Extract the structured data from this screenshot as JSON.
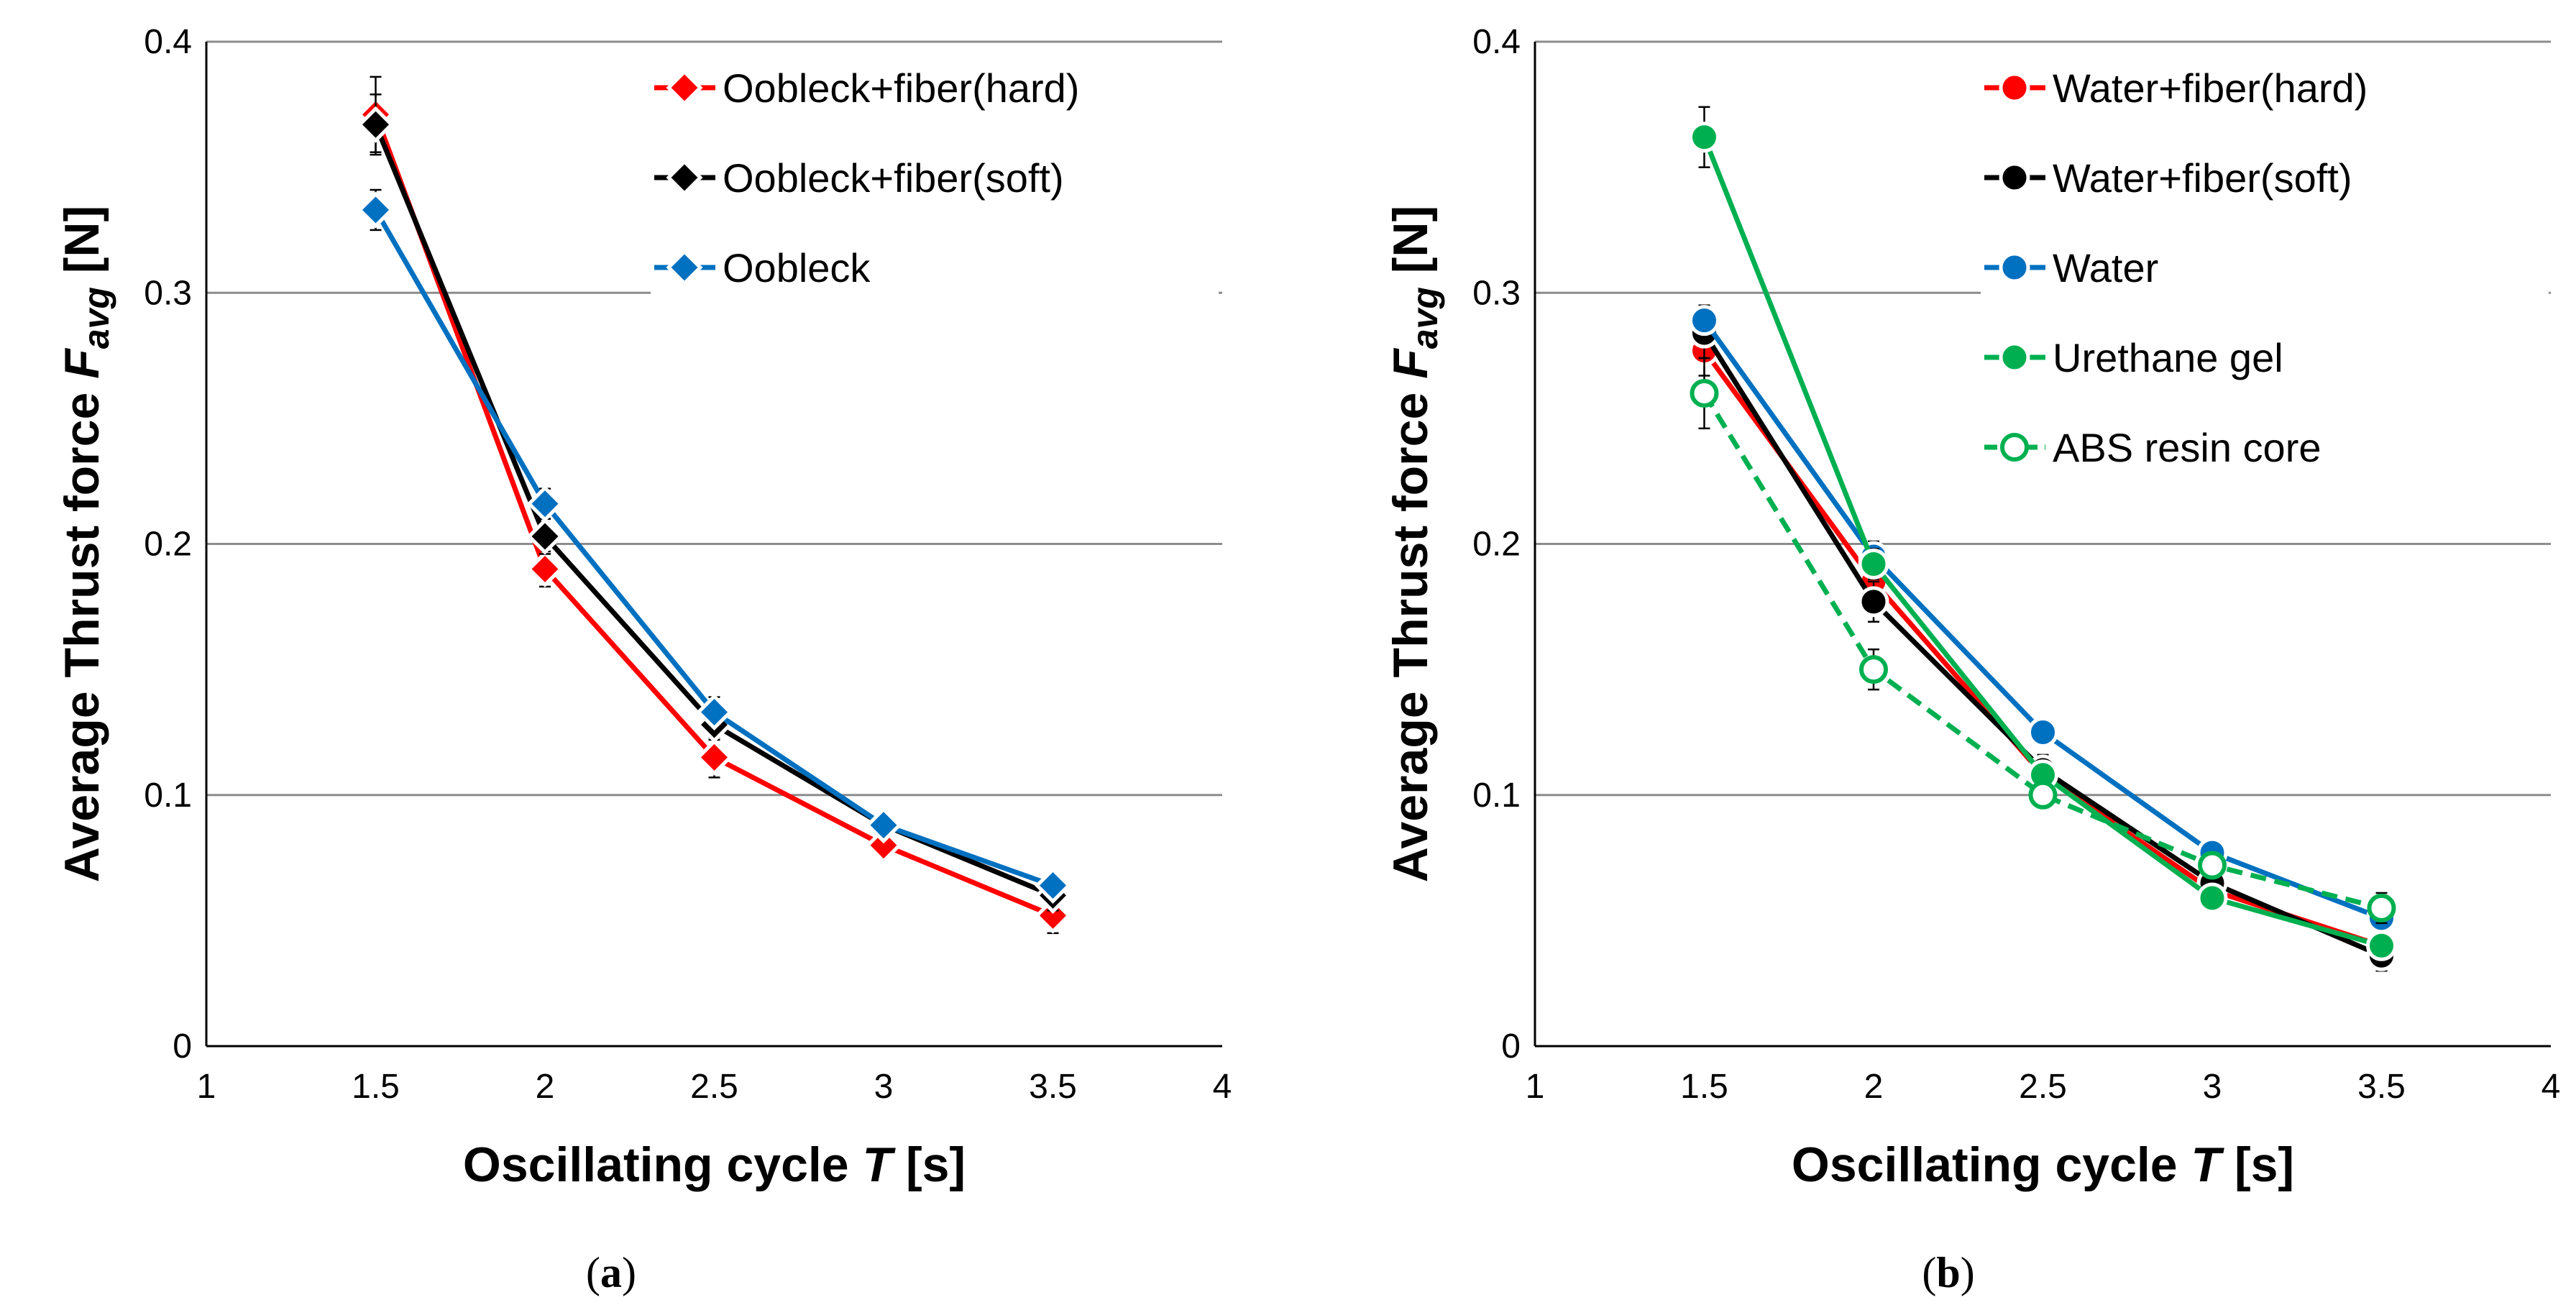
{
  "chart_data": [
    {
      "type": "line",
      "panel_label": "a",
      "xlabel": "Oscillating cycle",
      "xlabel_var": "T",
      "xlabel_unit": "[s]",
      "ylabel": "Average  Thrust force",
      "ylabel_var": "F",
      "ylabel_sub": "avg",
      "ylabel_unit": "[N]",
      "xlim": [
        1,
        4
      ],
      "ylim": [
        0,
        0.4
      ],
      "xticks": [
        "1",
        "1.5",
        "2",
        "2.5",
        "3",
        "3.5",
        "4"
      ],
      "yticks": [
        "0",
        "0.1",
        "0.2",
        "0.3",
        "0.4"
      ],
      "grid": "horizontal",
      "legend_position": "top-right",
      "series": [
        {
          "name": "Oobleck+fiber(hard)",
          "color": "#ff0000",
          "marker": "diamond",
          "dashed": false,
          "x": [
            1.5,
            2,
            2.5,
            3,
            3.5
          ],
          "y": [
            0.371,
            0.19,
            0.115,
            0.08,
            0.052
          ],
          "err": [
            0.015,
            0.007,
            0.008,
            0.004,
            0.007
          ]
        },
        {
          "name": "Oobleck+fiber(soft)",
          "color": "#000000",
          "marker": "diamond",
          "dashed": false,
          "x": [
            1.5,
            2,
            2.5,
            3,
            3.5
          ],
          "y": [
            0.367,
            0.203,
            0.128,
            0.088,
            0.06
          ],
          "err": [
            0.012,
            0.007,
            0.006,
            0.004,
            0.006
          ]
        },
        {
          "name": "Oobleck",
          "color": "#0070c0",
          "marker": "diamond",
          "dashed": false,
          "x": [
            1.5,
            2,
            2.5,
            3,
            3.5
          ],
          "y": [
            0.333,
            0.216,
            0.133,
            0.088,
            0.064
          ],
          "err": [
            0.008,
            0.006,
            0.006,
            0.004,
            0.004
          ]
        }
      ]
    },
    {
      "type": "line",
      "panel_label": "b",
      "xlabel": "Oscillating cycle",
      "xlabel_var": "T",
      "xlabel_unit": "[s]",
      "ylabel": "Average  Thrust force",
      "ylabel_var": "F",
      "ylabel_sub": "avg",
      "ylabel_unit": "[N]",
      "xlim": [
        1,
        4
      ],
      "ylim": [
        0,
        0.4
      ],
      "xticks": [
        "1",
        "1.5",
        "2",
        "2.5",
        "3",
        "3.5",
        "4"
      ],
      "yticks": [
        "0",
        "0.1",
        "0.2",
        "0.3",
        "0.4"
      ],
      "grid": "horizontal",
      "legend_position": "top-right",
      "series": [
        {
          "name": "Water+fiber(hard)",
          "color": "#ff0000",
          "marker": "circle",
          "dashed": false,
          "x": [
            1.5,
            2,
            2.5,
            3,
            3.5
          ],
          "y": [
            0.277,
            0.185,
            0.108,
            0.062,
            0.04
          ],
          "err": [
            0.01,
            0.008,
            0.006,
            0.005,
            0.005
          ]
        },
        {
          "name": "Water+fiber(soft)",
          "color": "#000000",
          "marker": "circle",
          "dashed": false,
          "x": [
            1.5,
            2,
            2.5,
            3,
            3.5
          ],
          "y": [
            0.284,
            0.177,
            0.11,
            0.065,
            0.036
          ],
          "err": [
            0.01,
            0.008,
            0.006,
            0.005,
            0.006
          ]
        },
        {
          "name": "Water",
          "color": "#0070c0",
          "marker": "circle",
          "dashed": false,
          "x": [
            1.5,
            2,
            2.5,
            3,
            3.5
          ],
          "y": [
            0.289,
            0.195,
            0.125,
            0.077,
            0.051
          ],
          "err": [
            0.006,
            0.006,
            0.004,
            0.004,
            0.005
          ]
        },
        {
          "name": "Urethane gel",
          "color": "#00b050",
          "marker": "circle",
          "dashed": false,
          "x": [
            1.5,
            2,
            2.5,
            3,
            3.5
          ],
          "y": [
            0.362,
            0.192,
            0.108,
            0.059,
            0.04
          ],
          "err": [
            0.012,
            0.006,
            0.005,
            0.004,
            0.004
          ]
        },
        {
          "name": "ABS resin core",
          "color": "#00b050",
          "marker": "circle-open",
          "dashed": true,
          "x": [
            1.5,
            2,
            2.5,
            3,
            3.5
          ],
          "y": [
            0.26,
            0.15,
            0.1,
            0.072,
            0.055
          ],
          "err": [
            0.014,
            0.008,
            0.005,
            0.004,
            0.006
          ]
        }
      ]
    }
  ]
}
